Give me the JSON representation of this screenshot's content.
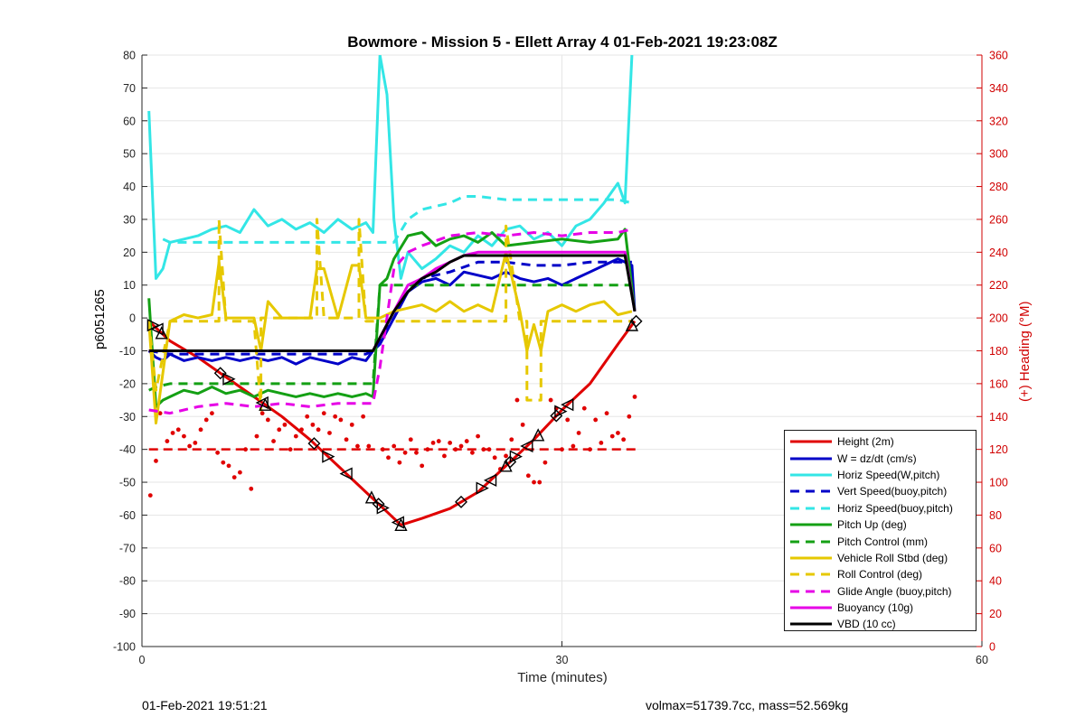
{
  "page": {
    "title": "Bowmore - Mission 5 - Ellett Array 4 01-Feb-2021 19:23:08Z",
    "footer_left": "01-Feb-2021 19:51:21",
    "footer_right": "volmax=51739.7cc, mass=52.569kg"
  },
  "colors": {
    "red": "#e00000",
    "blue": "#0000c8",
    "cyan": "#33e6e6",
    "green": "#14a014",
    "yellow": "#e6c800",
    "magenta": "#e600e6",
    "black": "#000000",
    "axis_right": "#d00000"
  },
  "chart_data": {
    "type": "line",
    "title": "Bowmore - Mission 5 - Ellett Array 4 01-Feb-2021 19:23:08Z",
    "xlabel": "Time (minutes)",
    "ylabel": "p6051265",
    "ylabel_right": "(+) Heading (°M)",
    "xlim": [
      0,
      60
    ],
    "ylim": [
      -100,
      80
    ],
    "ylim_right": [
      0,
      360
    ],
    "xticks": [
      0,
      30,
      60
    ],
    "yticks": [
      -100,
      -90,
      -80,
      -70,
      -60,
      -50,
      -40,
      -30,
      -20,
      -10,
      0,
      10,
      20,
      30,
      40,
      50,
      60,
      70,
      80
    ],
    "yticks_right": [
      0,
      20,
      40,
      60,
      80,
      100,
      120,
      140,
      160,
      180,
      200,
      220,
      240,
      260,
      280,
      300,
      320,
      340,
      360
    ],
    "grid": true,
    "legend_position": "bottom-right",
    "series": [
      {
        "name": "Height (2m)",
        "color": "red",
        "style": "solid",
        "x": [
          0.5,
          2,
          4,
          6,
          8,
          10,
          12,
          14,
          16,
          17.5,
          18.5,
          20,
          22,
          24,
          26,
          28,
          30,
          32,
          34,
          35.2
        ],
        "y": [
          -1,
          -7,
          -12,
          -18,
          -24,
          -30,
          -37,
          -45,
          -53,
          -59,
          -63,
          -61,
          -58,
          -53,
          -45,
          -37,
          -28,
          -20,
          -8,
          -1
        ]
      },
      {
        "name": "W = dz/dt (cm/s)",
        "color": "blue",
        "style": "solid",
        "x": [
          0.5,
          1,
          1.5,
          2,
          3,
          4,
          5,
          6,
          7,
          8,
          9,
          10,
          11,
          12,
          13,
          14,
          15,
          16,
          16.5,
          17,
          18,
          19,
          20,
          21,
          22,
          23,
          24,
          25,
          26,
          27,
          28,
          29,
          30,
          31,
          32,
          33,
          34,
          35,
          35.2
        ],
        "y": [
          -10,
          -12,
          -13,
          -11,
          -13,
          -12,
          -13,
          -12,
          -13,
          -12,
          -13,
          -12,
          -14,
          -12,
          -13,
          -14,
          -12,
          -13,
          -10,
          -8,
          0,
          8,
          11,
          12,
          10,
          14,
          13,
          12,
          14,
          12,
          11,
          12,
          10,
          12,
          14,
          16,
          18,
          16,
          2
        ]
      },
      {
        "name": "Horiz Speed(W,pitch)",
        "color": "cyan",
        "style": "solid",
        "x": [
          0.5,
          1,
          1.5,
          2,
          3,
          4,
          5,
          6,
          7,
          8,
          9,
          10,
          11,
          12,
          13,
          14,
          15,
          16,
          16.5,
          17,
          17.5,
          18,
          18.5,
          19,
          20,
          21,
          22,
          23,
          24,
          25,
          26,
          27,
          28,
          29,
          30,
          31,
          32,
          33,
          34,
          34.5,
          35
        ],
        "y": [
          63,
          12,
          15,
          23,
          24,
          25,
          27,
          28,
          26,
          33,
          28,
          30,
          27,
          29,
          26,
          30,
          27,
          29,
          26,
          80,
          68,
          30,
          12,
          20,
          15,
          18,
          22,
          20,
          25,
          22,
          27,
          28,
          24,
          26,
          22,
          28,
          30,
          35,
          41,
          35,
          80
        ]
      },
      {
        "name": "Vert Speed(buoy,pitch)",
        "color": "blue",
        "style": "dashed",
        "x": [
          0.5,
          2,
          4,
          6,
          8,
          10,
          12,
          14,
          16,
          16.5,
          18,
          19,
          20,
          22,
          24,
          26,
          28,
          30,
          32,
          34,
          35
        ],
        "y": [
          -10,
          -11,
          -11,
          -11,
          -11,
          -11,
          -11,
          -11,
          -11,
          -10,
          0,
          8,
          12,
          14,
          17,
          17,
          16,
          16,
          17,
          17,
          17
        ]
      },
      {
        "name": "Horiz Speed(buoy,pitch)",
        "color": "cyan",
        "style": "dashed",
        "x": [
          1.5,
          2,
          4,
          6,
          8,
          10,
          12,
          14,
          16,
          16.5,
          18,
          19,
          20,
          22,
          23,
          24,
          26,
          28,
          30,
          32,
          34,
          35
        ],
        "y": [
          24,
          23,
          23,
          23,
          23,
          23,
          23,
          23,
          23,
          23,
          23,
          30,
          33,
          35,
          37,
          37,
          36,
          36,
          36,
          36,
          36,
          35
        ]
      },
      {
        "name": "Pitch Up (deg)",
        "color": "green",
        "style": "solid",
        "x": [
          0.5,
          1,
          1.5,
          2,
          3,
          4,
          5,
          6,
          7,
          8,
          9,
          10,
          11,
          12,
          13,
          14,
          15,
          16,
          16.5,
          17,
          17.5,
          18,
          19,
          20,
          21,
          22,
          23,
          24,
          25,
          26,
          28,
          30,
          32,
          34,
          34.5,
          35.2
        ],
        "y": [
          6,
          -27,
          -25,
          -24,
          -22,
          -23,
          -21,
          -23,
          -22,
          -24,
          -22,
          -23,
          -24,
          -23,
          -24,
          -23,
          -24,
          -23,
          -24,
          10,
          12,
          18,
          25,
          26,
          22,
          24,
          25,
          23,
          26,
          22,
          23,
          24,
          23,
          24,
          27,
          2
        ]
      },
      {
        "name": "Pitch Control (mm)",
        "color": "green",
        "style": "dashed",
        "x": [
          0.5,
          1,
          2,
          4,
          6,
          8,
          10,
          12,
          14,
          16,
          16.5,
          17,
          18,
          20,
          22,
          24,
          26,
          28,
          30,
          32,
          34,
          35
        ],
        "y": [
          -22,
          -21,
          -20,
          -20,
          -20,
          -20,
          -20,
          -20,
          -20,
          -20,
          -20,
          10,
          10,
          10,
          10,
          10,
          10,
          10,
          10,
          10,
          10,
          10
        ]
      },
      {
        "name": "Vehicle Roll Stbd (deg)",
        "color": "yellow",
        "style": "solid",
        "x": [
          0.5,
          1,
          2,
          3,
          4,
          5,
          5.5,
          6,
          7,
          8,
          8.5,
          9,
          10,
          11,
          12,
          12.5,
          13,
          14,
          15,
          15.5,
          16,
          17,
          18,
          19,
          20,
          21,
          22,
          23,
          24,
          25,
          26,
          27,
          27.5,
          28,
          28.5,
          29,
          30,
          31,
          32,
          33,
          34,
          35
        ],
        "y": [
          -1,
          -32,
          -1,
          1,
          0,
          1,
          17,
          0,
          0,
          0,
          -10,
          5,
          0,
          0,
          0,
          15,
          15,
          0,
          16,
          16,
          0,
          0,
          2,
          3,
          4,
          2,
          5,
          2,
          4,
          2,
          20,
          2,
          -10,
          -2,
          -10,
          2,
          4,
          2,
          4,
          5,
          1,
          2
        ]
      },
      {
        "name": "Roll Control (deg)",
        "color": "yellow",
        "style": "dashed",
        "x": [
          0.5,
          1,
          2,
          4,
          5.5,
          5.5,
          6,
          8,
          8.5,
          8.5,
          9,
          12,
          12.5,
          12.5,
          13,
          15,
          15.5,
          15.5,
          16,
          17,
          20,
          24,
          26,
          26,
          27,
          27.5,
          27.5,
          28.5,
          28.5,
          29,
          30,
          32,
          35
        ],
        "y": [
          -1,
          -22,
          -1,
          -1,
          -1,
          30,
          -1,
          -1,
          -28,
          0,
          0,
          0,
          0,
          30,
          0,
          0,
          0,
          30,
          -1,
          -1,
          -1,
          -1,
          -1,
          28,
          -1,
          -1,
          -25,
          -25,
          -1,
          -1,
          -1,
          -1,
          -1
        ]
      },
      {
        "name": "Glide Angle (buoy,pitch)",
        "color": "magenta",
        "style": "dashed",
        "x": [
          0.5,
          2,
          4,
          6,
          8,
          10,
          12,
          14,
          16,
          16.5,
          17,
          18,
          19,
          20,
          22,
          24,
          26,
          28,
          30,
          32,
          34,
          35
        ],
        "y": [
          -28,
          -29,
          -27,
          -26,
          -27,
          -26,
          -27,
          -26,
          -26,
          -26,
          -15,
          15,
          20,
          22,
          25,
          26,
          25,
          26,
          25,
          26,
          26,
          27
        ]
      },
      {
        "name": "Buoyancy (10g)",
        "color": "magenta",
        "style": "solid",
        "x": [
          0.5,
          2,
          4,
          6,
          8,
          10,
          12,
          14,
          16,
          16.5,
          17,
          18,
          19,
          20,
          21,
          22,
          23,
          24,
          26,
          28,
          30,
          32,
          34,
          34.5,
          35.2
        ],
        "y": [
          -10,
          -10,
          -10,
          -10,
          -10,
          -10,
          -10,
          -10,
          -10,
          -10,
          -6,
          2,
          10,
          12,
          15,
          17,
          19,
          20,
          20,
          20,
          20,
          20,
          20,
          20,
          2
        ]
      },
      {
        "name": "VBD (10 cc)",
        "color": "black",
        "style": "solid",
        "x": [
          0.5,
          2,
          4,
          6,
          8,
          10,
          12,
          14,
          16,
          16.5,
          17,
          18,
          19,
          20,
          21,
          22,
          23,
          24,
          26,
          28,
          30,
          32,
          34,
          34.5,
          35.2
        ],
        "y": [
          -10,
          -10,
          -10,
          -10,
          -10,
          -10,
          -10,
          -10,
          -10,
          -10,
          -6,
          2,
          8,
          12,
          14,
          17,
          19,
          19,
          19,
          19,
          19,
          19,
          19,
          19,
          2
        ]
      }
    ],
    "heading_reference": {
      "axis": "right",
      "value": 120,
      "color": "red",
      "style": "dashed",
      "x_range": [
        0.5,
        35.5
      ]
    },
    "heading_points": {
      "axis": "right",
      "color": "red",
      "x": [
        0.6,
        1.0,
        1.3,
        1.8,
        2.2,
        2.6,
        3.0,
        3.4,
        3.8,
        4.2,
        4.6,
        5.0,
        5.4,
        5.8,
        6.2,
        6.6,
        7.0,
        7.4,
        7.8,
        8.2,
        8.6,
        9.0,
        9.4,
        9.8,
        10.2,
        10.6,
        11.0,
        11.4,
        11.8,
        12.2,
        12.6,
        13.0,
        13.4,
        13.8,
        14.2,
        14.6,
        15.0,
        15.4,
        15.8,
        16.2,
        17.2,
        17.6,
        18.0,
        18.4,
        18.8,
        19.2,
        19.6,
        20.0,
        20.4,
        20.8,
        21.2,
        21.6,
        22.0,
        22.4,
        22.8,
        23.2,
        23.6,
        24.0,
        24.4,
        24.8,
        25.2,
        25.6,
        26.0,
        26.4,
        26.8,
        27.2,
        27.6,
        28.0,
        28.4,
        28.8,
        29.2,
        29.6,
        30.0,
        30.4,
        30.8,
        31.2,
        31.6,
        32.0,
        32.4,
        32.8,
        33.2,
        33.6,
        34.0,
        34.4,
        34.8,
        35.2
      ],
      "y": [
        92,
        113,
        142,
        125,
        130,
        132,
        128,
        122,
        124,
        132,
        138,
        142,
        118,
        112,
        110,
        103,
        106,
        120,
        96,
        128,
        142,
        138,
        125,
        132,
        135,
        120,
        128,
        132,
        140,
        135,
        132,
        142,
        130,
        140,
        138,
        126,
        135,
        122,
        140,
        122,
        120,
        115,
        122,
        112,
        118,
        126,
        118,
        110,
        120,
        124,
        125,
        116,
        124,
        120,
        122,
        125,
        118,
        128,
        120,
        120,
        115,
        108,
        116,
        126,
        150,
        135,
        104,
        100,
        100,
        112,
        150,
        145,
        120,
        138,
        122,
        130,
        145,
        120,
        138,
        124,
        142,
        128,
        130,
        126,
        140,
        152
      ]
    },
    "event_markers": {
      "series": "Height (2m)",
      "x": [
        0.8,
        1.1,
        1.4,
        5.6,
        6.2,
        8.6,
        8.8,
        12.3,
        13.3,
        14.6,
        16.4,
        16.9,
        17.2,
        18.3,
        18.5,
        22.8,
        24.3,
        24.9,
        26.0,
        26.3,
        26.7,
        27.5,
        28.3,
        29.6,
        29.9,
        30.4,
        35.0,
        35.3
      ]
    }
  }
}
